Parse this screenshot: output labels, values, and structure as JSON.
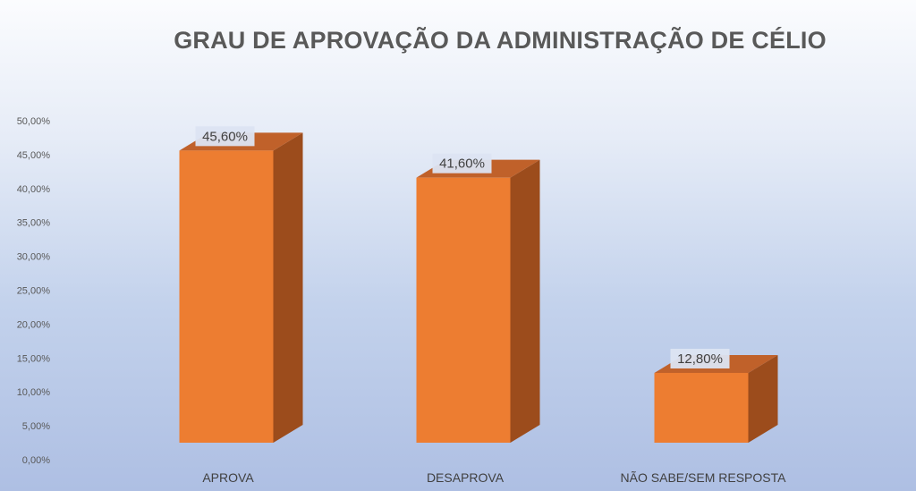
{
  "chart_data": {
    "type": "bar",
    "title": "GRAU DE APROVAÇÃO DA ADMINISTRAÇÃO DE CÉLIO",
    "categories": [
      "APROVA",
      "DESAPROVA",
      "NÃO SABE/SEM RESPOSTA"
    ],
    "values": [
      45.6,
      41.6,
      12.8
    ],
    "data_labels": [
      "45,60%",
      "41,60%",
      "12,80%"
    ],
    "ylim": [
      0,
      50
    ],
    "yticks": [
      0,
      5,
      10,
      15,
      20,
      25,
      30,
      35,
      40,
      45,
      50
    ],
    "ytick_labels": [
      "0,00%",
      "5,00%",
      "10,00%",
      "15,00%",
      "20,00%",
      "25,00%",
      "30,00%",
      "35,00%",
      "40,00%",
      "45,00%",
      "50,00%"
    ],
    "xlabel": "",
    "ylabel": "",
    "grid": false,
    "style": "3d-column",
    "colors": {
      "bar_front": "#ED7D31",
      "bar_side": "#9C4C1C",
      "bar_top": "#C0612A",
      "label_box": "#DCE4F2"
    }
  }
}
